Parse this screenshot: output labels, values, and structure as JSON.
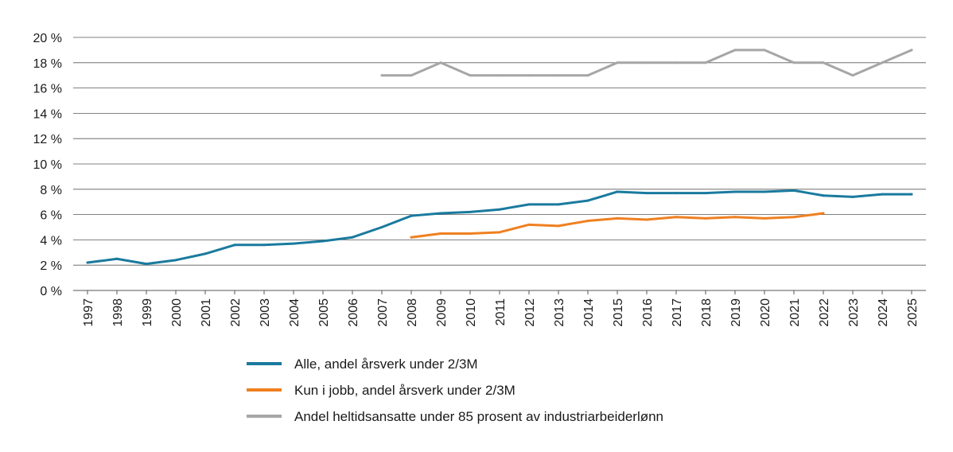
{
  "chart_data": {
    "type": "line",
    "title": "",
    "xlabel": "",
    "ylabel": "",
    "x": [
      "1997",
      "1998",
      "1999",
      "2000",
      "2001",
      "2002",
      "2003",
      "2004",
      "2005",
      "2006",
      "2007",
      "2008",
      "2009",
      "2010",
      "2011",
      "2012",
      "2013",
      "2014",
      "2015",
      "2016",
      "2017",
      "2018",
      "2019",
      "2020",
      "2021",
      "2022",
      "2023",
      "2024",
      "2025"
    ],
    "ylim": [
      0,
      20
    ],
    "yticks": [
      0,
      2,
      4,
      6,
      8,
      10,
      12,
      14,
      16,
      18,
      20
    ],
    "ytick_labels": [
      "0 %",
      "2 %",
      "4 %",
      "6 %",
      "8 %",
      "10 %",
      "12 %",
      "14 %",
      "16 %",
      "18 %",
      "20 %"
    ],
    "grid": "horizontal",
    "legend_position": "bottom",
    "series": [
      {
        "name": "Alle, andel årsverk under 2/3M",
        "color": "#1a7a9e",
        "values": [
          2.2,
          2.5,
          2.1,
          2.4,
          2.9,
          3.6,
          3.6,
          3.7,
          3.9,
          4.2,
          5.0,
          5.9,
          6.1,
          6.2,
          6.4,
          6.8,
          6.8,
          7.1,
          7.8,
          7.7,
          7.7,
          7.7,
          7.8,
          7.8,
          7.9,
          7.5,
          7.4,
          7.6,
          7.6
        ]
      },
      {
        "name": "Kun i jobb, andel årsverk under 2/3M",
        "color": "#ef8020",
        "values": [
          null,
          null,
          null,
          null,
          null,
          null,
          null,
          null,
          null,
          null,
          null,
          4.2,
          4.5,
          4.5,
          4.6,
          5.2,
          5.1,
          5.5,
          5.7,
          5.6,
          5.8,
          5.7,
          5.8,
          5.7,
          5.8,
          6.1,
          null,
          null,
          null
        ]
      },
      {
        "name": "Andel heltidsansatte under 85 prosent av industriarbeiderlønn",
        "color": "#a6a6a6",
        "values": [
          null,
          null,
          null,
          null,
          null,
          null,
          null,
          null,
          null,
          null,
          17,
          17,
          18,
          17,
          17,
          17,
          17,
          17,
          18,
          18,
          18,
          18,
          19,
          19,
          18,
          18,
          17,
          18,
          19
        ]
      }
    ]
  }
}
